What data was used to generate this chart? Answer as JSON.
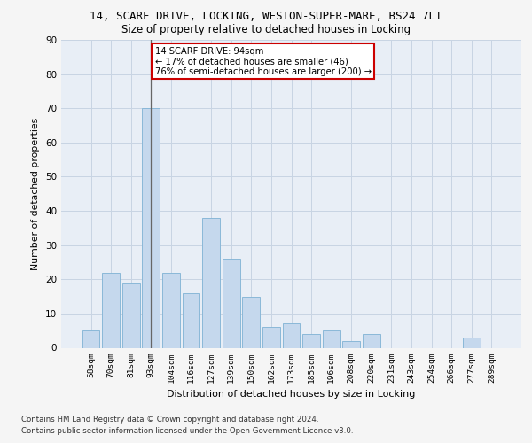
{
  "title_line1": "14, SCARF DRIVE, LOCKING, WESTON-SUPER-MARE, BS24 7LT",
  "title_line2": "Size of property relative to detached houses in Locking",
  "xlabel": "Distribution of detached houses by size in Locking",
  "ylabel": "Number of detached properties",
  "categories": [
    "58sqm",
    "70sqm",
    "81sqm",
    "93sqm",
    "104sqm",
    "116sqm",
    "127sqm",
    "139sqm",
    "150sqm",
    "162sqm",
    "173sqm",
    "185sqm",
    "196sqm",
    "208sqm",
    "220sqm",
    "231sqm",
    "243sqm",
    "254sqm",
    "266sqm",
    "277sqm",
    "289sqm"
  ],
  "values": [
    5,
    22,
    19,
    70,
    22,
    16,
    38,
    26,
    15,
    6,
    7,
    4,
    5,
    2,
    4,
    0,
    0,
    0,
    0,
    3,
    0
  ],
  "bar_color": "#c5d8ed",
  "bar_edge_color": "#8ab8d8",
  "subject_bar_index": 3,
  "subject_line_color": "#666666",
  "annotation_text": "14 SCARF DRIVE: 94sqm\n← 17% of detached houses are smaller (46)\n76% of semi-detached houses are larger (200) →",
  "annotation_box_facecolor": "#ffffff",
  "annotation_box_edgecolor": "#cc0000",
  "ylim": [
    0,
    90
  ],
  "yticks": [
    0,
    10,
    20,
    30,
    40,
    50,
    60,
    70,
    80,
    90
  ],
  "grid_color": "#c8d4e3",
  "background_color": "#e8eef6",
  "fig_facecolor": "#f5f5f5",
  "footer_line1": "Contains HM Land Registry data © Crown copyright and database right 2024.",
  "footer_line2": "Contains public sector information licensed under the Open Government Licence v3.0."
}
